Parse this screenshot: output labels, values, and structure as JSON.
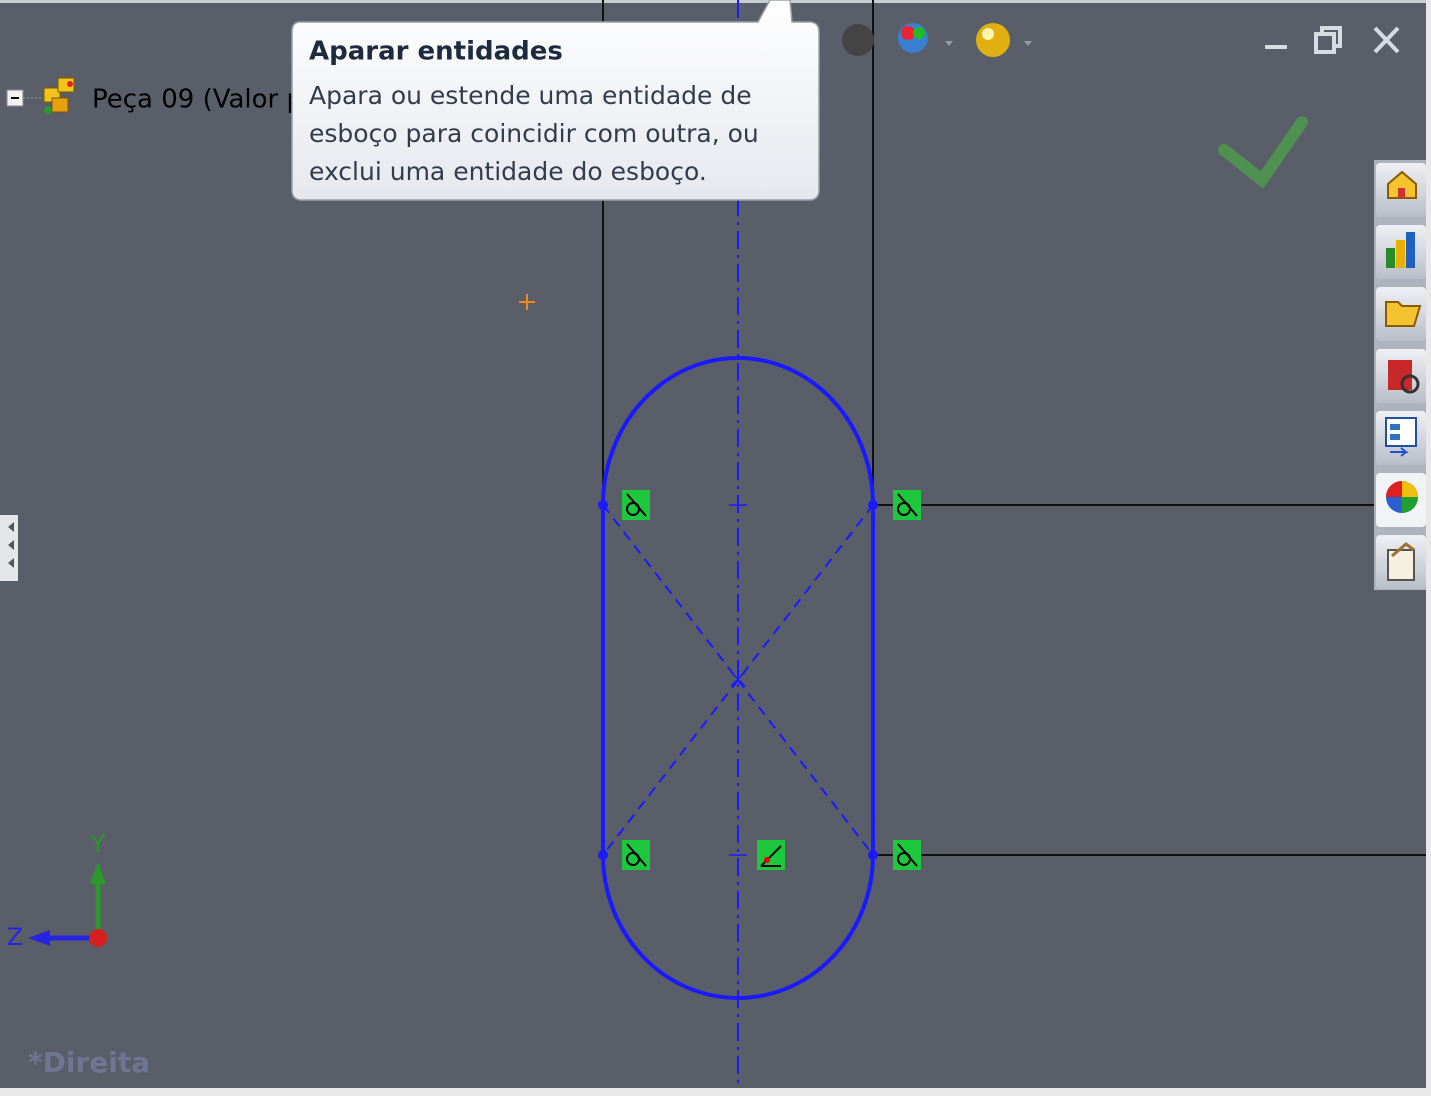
{
  "tree": {
    "item": "Peça 09  (Valor p"
  },
  "tooltip": {
    "title": "Aparar entidades",
    "lines": [
      "Apara ou estende uma entidade de",
      "esboço para coincidir com outra, ou",
      "exclui uma entidade do esboço."
    ]
  },
  "triad": {
    "y": "Y",
    "z": "Z"
  },
  "view": {
    "label": "*Direita"
  }
}
